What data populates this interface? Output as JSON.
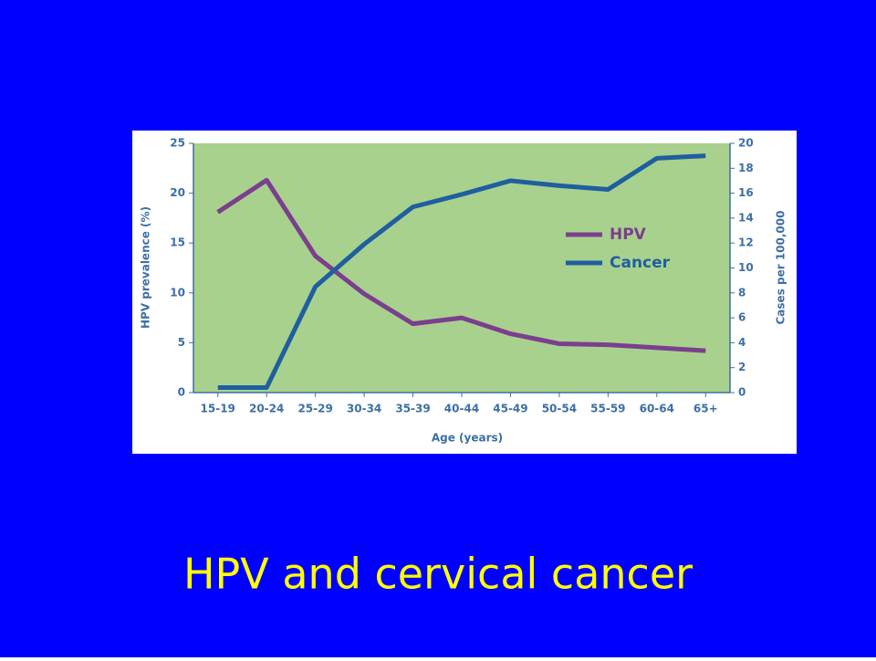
{
  "slide": {
    "title": "HPV and cervical cancer"
  },
  "chart_data": {
    "type": "line",
    "categories": [
      "15-19",
      "20-24",
      "25-29",
      "30-34",
      "35-39",
      "40-44",
      "45-49",
      "50-54",
      "55-59",
      "60-64",
      "65+"
    ],
    "series": [
      {
        "name": "HPV",
        "color": "#7b3f8e",
        "values": [
          18.1,
          21.3,
          13.7,
          9.9,
          6.9,
          7.5,
          5.9,
          4.9,
          4.8,
          4.5,
          4.2
        ]
      },
      {
        "name": "Cancer",
        "color": "#1f5f9f",
        "axis": "y2",
        "values": [
          0.4,
          0.4,
          8.5,
          11.9,
          14.9,
          15.9,
          17.0,
          16.6,
          16.3,
          18.8,
          19.0
        ]
      }
    ],
    "xlabel": "Age (years)",
    "ylabel": "HPV prevalence (%)",
    "y2label": "Cases per 100,000",
    "ylim": [
      0,
      25
    ],
    "yticks": [
      0,
      5,
      10,
      15,
      20,
      25
    ],
    "y2lim": [
      0,
      20
    ],
    "y2ticks": [
      0,
      2,
      4,
      6,
      8,
      10,
      12,
      14,
      16,
      18,
      20
    ],
    "legend": "upper right",
    "plot_background": "#a9d18e"
  }
}
